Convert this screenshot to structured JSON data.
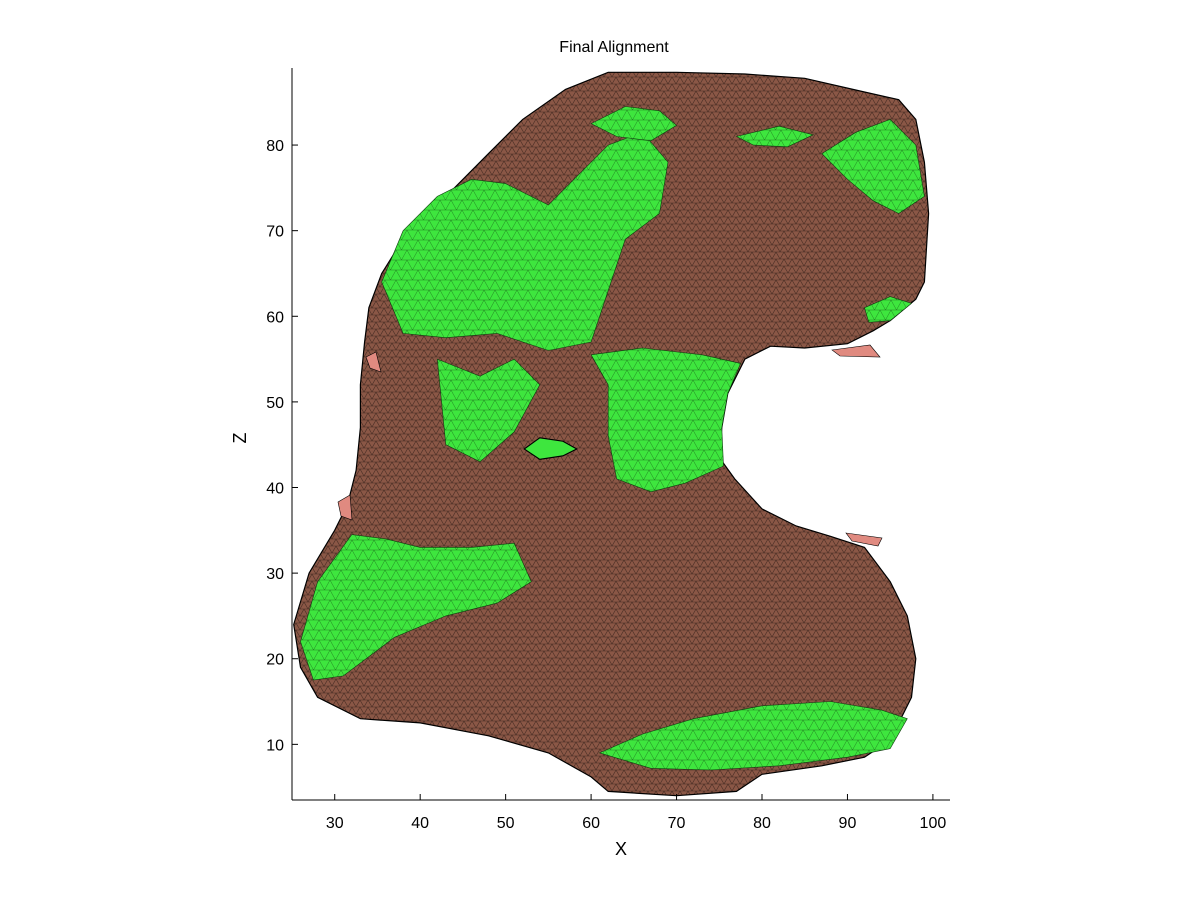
{
  "chart_data": {
    "type": "surface",
    "title": "Final Alignment",
    "xlabel": "X",
    "ylabel": "Z",
    "xlim": [
      25,
      102
    ],
    "ylim": [
      3.5,
      89
    ],
    "xticks": [
      30,
      40,
      50,
      60,
      70,
      80,
      90,
      100
    ],
    "yticks": [
      10,
      20,
      30,
      40,
      50,
      60,
      70,
      80
    ],
    "grid": false,
    "legend": "none",
    "colors": {
      "brown_mesh": "#8a5746",
      "green_mesh": "#3ee63e",
      "pink_edge": "#e08a80",
      "edge_lines": "#000000"
    },
    "silhouette": [
      [
        62,
        88.5
      ],
      [
        70,
        88.5
      ],
      [
        78,
        88.3
      ],
      [
        85,
        87.8
      ],
      [
        92,
        86.2
      ],
      [
        96,
        85.3
      ],
      [
        98,
        83
      ],
      [
        99,
        78
      ],
      [
        99.5,
        72
      ],
      [
        99,
        64
      ],
      [
        98,
        62
      ],
      [
        95,
        59.5
      ],
      [
        93,
        58.3
      ],
      [
        90,
        56.8
      ],
      [
        85,
        56.3
      ],
      [
        81,
        56.5
      ],
      [
        78,
        55
      ],
      [
        76,
        51
      ],
      [
        75.3,
        47
      ],
      [
        75,
        43.5
      ],
      [
        76.8,
        41
      ],
      [
        80,
        37.5
      ],
      [
        84,
        35.5
      ],
      [
        88,
        34.3
      ],
      [
        92,
        33
      ],
      [
        95,
        29
      ],
      [
        97,
        25
      ],
      [
        98,
        20
      ],
      [
        97.5,
        15.5
      ],
      [
        95,
        10.5
      ],
      [
        92,
        8.5
      ],
      [
        87,
        7.5
      ],
      [
        80,
        6.5
      ],
      [
        77,
        4.5
      ],
      [
        70,
        4
      ],
      [
        62,
        4.5
      ],
      [
        60,
        6.2
      ],
      [
        55,
        9
      ],
      [
        48,
        11
      ],
      [
        40,
        12.5
      ],
      [
        33,
        13
      ],
      [
        28,
        15.5
      ],
      [
        26,
        19
      ],
      [
        25.2,
        24
      ],
      [
        27,
        30
      ],
      [
        30,
        35
      ],
      [
        31.5,
        38
      ],
      [
        32.5,
        42
      ],
      [
        33,
        47
      ],
      [
        33,
        52
      ],
      [
        33.5,
        57
      ],
      [
        34,
        61
      ],
      [
        35.5,
        65
      ],
      [
        38,
        69
      ],
      [
        41,
        72
      ],
      [
        44,
        75
      ],
      [
        48,
        79
      ],
      [
        52,
        83
      ],
      [
        57,
        86.5
      ],
      [
        62,
        88.5
      ]
    ],
    "hole": [
      [
        54,
        45.8
      ],
      [
        56.7,
        45.4
      ],
      [
        58.3,
        44.5
      ],
      [
        56.7,
        43.7
      ],
      [
        54,
        43.3
      ],
      [
        52.2,
        44.5
      ]
    ],
    "green_patches": [
      [
        [
          35.5,
          64
        ],
        [
          38,
          70
        ],
        [
          42,
          74
        ],
        [
          46,
          76
        ],
        [
          50,
          75.5
        ],
        [
          55,
          73
        ],
        [
          58,
          76
        ],
        [
          62,
          80
        ],
        [
          66,
          81.5
        ],
        [
          69,
          78
        ],
        [
          68,
          72
        ],
        [
          64,
          69
        ],
        [
          62,
          63
        ],
        [
          60,
          57
        ],
        [
          55,
          56
        ],
        [
          49,
          58
        ],
        [
          43,
          57.5
        ],
        [
          38,
          58
        ]
      ],
      [
        [
          60,
          82.5
        ],
        [
          64,
          84.5
        ],
        [
          68,
          84
        ],
        [
          70,
          82.3
        ],
        [
          67,
          80.5
        ],
        [
          63,
          81
        ]
      ],
      [
        [
          77,
          81
        ],
        [
          82,
          82.2
        ],
        [
          86,
          81.2
        ],
        [
          83,
          79.8
        ],
        [
          79,
          80
        ]
      ],
      [
        [
          87,
          79
        ],
        [
          91,
          81.5
        ],
        [
          95,
          83
        ],
        [
          98,
          80
        ],
        [
          99,
          74
        ],
        [
          96,
          72
        ],
        [
          93,
          73.5
        ],
        [
          90,
          76
        ]
      ],
      [
        [
          92,
          61
        ],
        [
          95,
          62.3
        ],
        [
          97.5,
          61.5
        ],
        [
          95,
          59.5
        ],
        [
          92.5,
          59.3
        ]
      ],
      [
        [
          42,
          55
        ],
        [
          47,
          53
        ],
        [
          51,
          55
        ],
        [
          54,
          52
        ],
        [
          51,
          46.5
        ],
        [
          47,
          43
        ],
        [
          43,
          45
        ]
      ],
      [
        [
          60,
          55.5
        ],
        [
          62,
          52
        ],
        [
          62,
          46
        ],
        [
          63,
          41
        ],
        [
          67,
          39.5
        ],
        [
          71,
          40.5
        ],
        [
          75.5,
          42.5
        ],
        [
          75.3,
          47
        ],
        [
          76,
          51
        ],
        [
          77.5,
          54.5
        ],
        [
          73,
          55.5
        ],
        [
          66,
          56.3
        ]
      ],
      [
        [
          26,
          22
        ],
        [
          28,
          29
        ],
        [
          32,
          34.5
        ],
        [
          36,
          34
        ],
        [
          40,
          33
        ],
        [
          46,
          33
        ],
        [
          51,
          33.5
        ],
        [
          53,
          29
        ],
        [
          49,
          26.5
        ],
        [
          43,
          25
        ],
        [
          37,
          22.5
        ],
        [
          31,
          18
        ],
        [
          27.5,
          17.5
        ]
      ],
      [
        [
          61,
          9
        ],
        [
          66,
          11.2
        ],
        [
          72,
          13
        ],
        [
          80,
          14.5
        ],
        [
          88,
          15
        ],
        [
          94,
          14
        ],
        [
          97,
          13
        ],
        [
          95,
          9.5
        ],
        [
          90,
          8.5
        ],
        [
          82,
          7.5
        ],
        [
          74,
          7
        ],
        [
          67,
          7.2
        ]
      ]
    ]
  }
}
